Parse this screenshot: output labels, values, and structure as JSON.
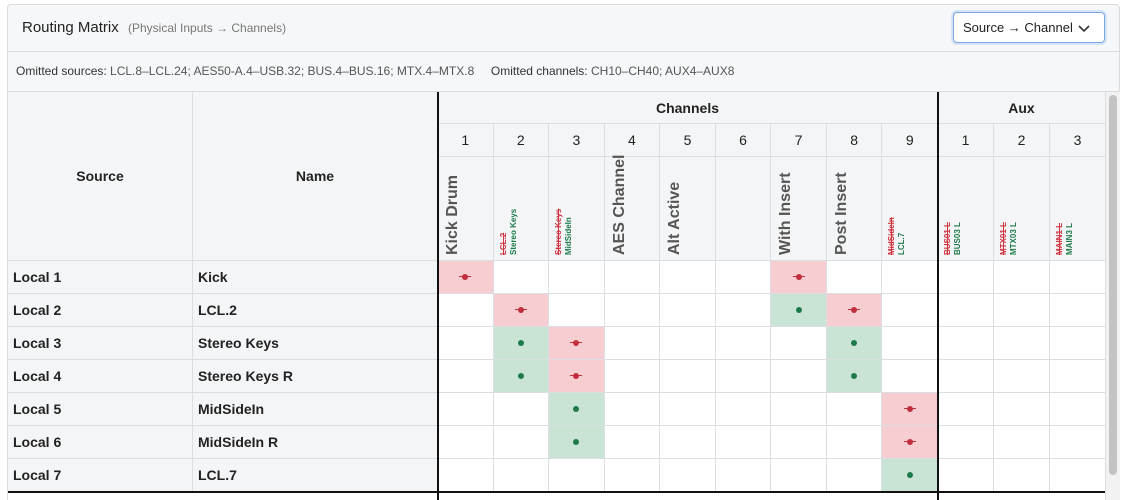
{
  "header": {
    "title": "Routing Matrix",
    "subtitle": "(Physical Inputs → Channels)",
    "mode": "Source → Channel"
  },
  "omitted": {
    "sources_label": "Omitted sources:",
    "sources": "LCL.8–LCL.24; AES50-A.4–USB.32; BUS.4–BUS.16; MTX.4–MTX.8",
    "channels_label": "Omitted channels:",
    "channels": "CH10–CH40; AUX4–AUX8"
  },
  "table": {
    "source_header": "Source",
    "name_header": "Name",
    "groups": [
      {
        "title": "Channels",
        "columns": [
          {
            "number": 1,
            "label": "Kick Drum"
          },
          {
            "number": 2,
            "old": "LCL.2",
            "new": "Stereo Keys"
          },
          {
            "number": 3,
            "old": "Stereo Keys",
            "new": "MidSideIn"
          },
          {
            "number": 4,
            "label": "AES Channel"
          },
          {
            "number": 5,
            "label": "Alt Active"
          },
          {
            "number": 6
          },
          {
            "number": 7,
            "label": "With Insert"
          },
          {
            "number": 8,
            "label": "Post Insert"
          },
          {
            "number": 9,
            "old": "MidSideIn",
            "new": "LCL.7"
          }
        ]
      },
      {
        "title": "Aux",
        "columns": [
          {
            "number": 1,
            "old": "BUS01 L",
            "new": "BUS03 L"
          },
          {
            "number": 2,
            "old": "MTX01 L",
            "new": "MTX03 L"
          },
          {
            "number": 3,
            "old": "MAIN1 L",
            "new": "MAIN3 L"
          }
        ]
      }
    ],
    "rows": [
      {
        "source": "Local 1",
        "name": "Kick",
        "cells": [
          "removed",
          null,
          null,
          null,
          null,
          null,
          "removed",
          null,
          null,
          null,
          null,
          null
        ]
      },
      {
        "source": "Local 2",
        "name": "LCL.2",
        "cells": [
          null,
          "removed",
          null,
          null,
          null,
          null,
          "added",
          "removed",
          null,
          null,
          null,
          null
        ]
      },
      {
        "source": "Local 3",
        "name": "Stereo Keys",
        "cells": [
          null,
          "added",
          "removed",
          null,
          null,
          null,
          null,
          "added",
          null,
          null,
          null,
          null
        ]
      },
      {
        "source": "Local 4",
        "name": "Stereo Keys R",
        "cells": [
          null,
          "added",
          "removed",
          null,
          null,
          null,
          null,
          "added",
          null,
          null,
          null,
          null
        ]
      },
      {
        "source": "Local 5",
        "name": "MidSideIn",
        "cells": [
          null,
          null,
          "added",
          null,
          null,
          null,
          null,
          null,
          "removed",
          null,
          null,
          null
        ]
      },
      {
        "source": "Local 6",
        "name": "MidSideIn R",
        "cells": [
          null,
          null,
          "added",
          null,
          null,
          null,
          null,
          null,
          "removed",
          null,
          null,
          null
        ]
      },
      {
        "source": "Local 7",
        "name": "LCL.7",
        "cells": [
          null,
          null,
          null,
          null,
          null,
          null,
          null,
          null,
          "added",
          null,
          null,
          null
        ]
      }
    ]
  }
}
